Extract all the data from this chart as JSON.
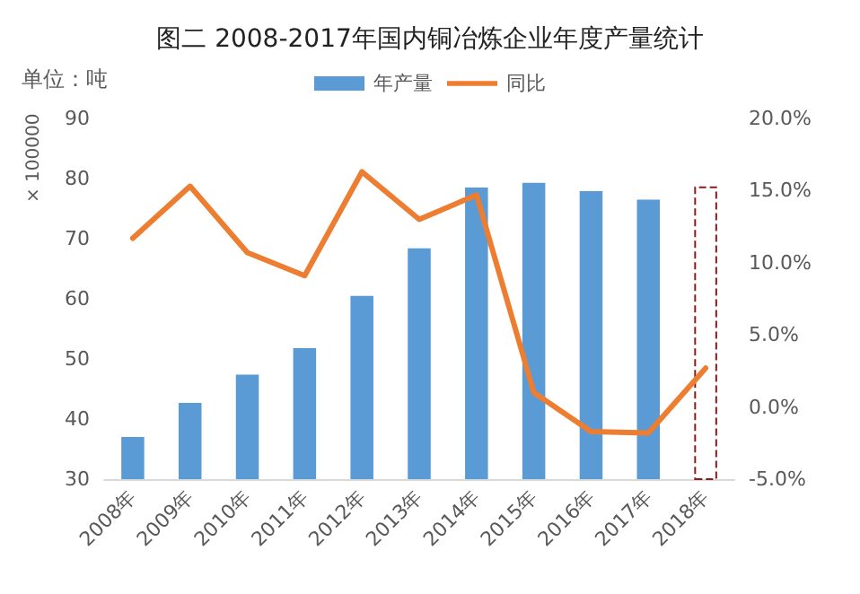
{
  "chart_data": {
    "type": "bar",
    "title": "图二 2008-2017年国内铜冶炼企业年度产量统计",
    "ylabel": "× 100000",
    "annotations": [
      "单位：吨"
    ],
    "categories": [
      "2008年",
      "2009年",
      "2010年",
      "2011年",
      "2012年",
      "2013年",
      "2014年",
      "2015年",
      "2016年",
      "2017年",
      "2018年"
    ],
    "series": [
      {
        "name": "年产量",
        "color": "#5b9bd5",
        "values": [
          37.0,
          42.7,
          47.4,
          51.8,
          60.5,
          68.4,
          78.5,
          79.3,
          77.9,
          76.5,
          null
        ]
      },
      {
        "color": "#8b1a1a",
        "line_style": "dashed",
        "values": [
          null,
          null,
          null,
          null,
          null,
          null,
          null,
          null,
          null,
          null,
          78.7
        ]
      },
      {
        "name": "同比",
        "type": "line",
        "axis": "y2",
        "color": "#ed7d31",
        "values": [
          11.7,
          15.3,
          10.7,
          9.1,
          16.3,
          13.0,
          14.7,
          1.0,
          -1.7,
          -1.8,
          2.7
        ]
      }
    ],
    "ylim": [
      30,
      90
    ],
    "yticks": [
      30,
      40,
      50,
      60,
      70,
      80,
      90
    ],
    "y2lim": [
      -5,
      20
    ],
    "y2ticks": [
      {
        "value": -5,
        "label": "-5.0%"
      },
      {
        "value": 0,
        "label": "0.0%"
      },
      {
        "value": 5,
        "label": "5.0%"
      },
      {
        "value": 10,
        "label": "10.0%"
      },
      {
        "value": 15,
        "label": "15.0%"
      },
      {
        "value": 20,
        "label": "20.0%"
      }
    ],
    "grid": false,
    "legend": "top",
    "marker": "none",
    "stacked": true
  }
}
